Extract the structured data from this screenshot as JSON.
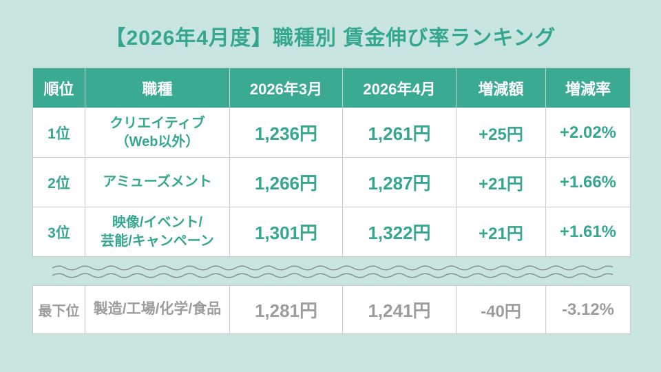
{
  "title": "【2026年4月度】職種別 賃金伸び率ランキング",
  "colors": {
    "background": "#c9e5df",
    "accent_teal": "#3aaa93",
    "teal_text": "#35a78f",
    "gray_text": "#9c9c9c",
    "header_text": "#ffffff",
    "wave_gray": "#878f8b"
  },
  "table": {
    "headers": [
      "順位",
      "職種",
      "2026年3月",
      "2026年4月",
      "増減額",
      "増減率"
    ],
    "rows": [
      {
        "rank": "1位",
        "job_line1": "クリエイティブ",
        "job_line2": "（Web以外）",
        "march": "1,236円",
        "april": "1,261円",
        "diff": "+25円",
        "rate": "+2.02%"
      },
      {
        "rank": "2位",
        "job_line1": "アミューズメント",
        "job_line2": "",
        "march": "1,266円",
        "april": "1,287円",
        "diff": "+21円",
        "rate": "+1.66%"
      },
      {
        "rank": "3位",
        "job_line1": "映像/イベント/",
        "job_line2": "芸能/キャンペーン",
        "march": "1,301円",
        "april": "1,322円",
        "diff": "+21円",
        "rate": "+1.61%"
      }
    ]
  },
  "bottom": {
    "rank": "最下位",
    "job": "製造/工場/化学/食品",
    "march": "1,281円",
    "april": "1,241円",
    "diff": "-40円",
    "rate": "-3.12%"
  },
  "chart_data": {
    "type": "table",
    "title": "【2026年4月度】職種別 賃金伸び率ランキング",
    "columns": [
      "順位",
      "職種",
      "2026年3月",
      "2026年4月",
      "増減額",
      "増減率"
    ],
    "rows": [
      [
        "1位",
        "クリエイティブ（Web以外）",
        "1,236円",
        "1,261円",
        "+25円",
        "+2.02%"
      ],
      [
        "2位",
        "アミューズメント",
        "1,266円",
        "1,287円",
        "+21円",
        "+1.66%"
      ],
      [
        "3位",
        "映像/イベント/芸能/キャンペーン",
        "1,301円",
        "1,322円",
        "+21円",
        "+1.61%"
      ],
      [
        "最下位",
        "製造/工場/化学/食品",
        "1,281円",
        "1,241円",
        "-40円",
        "-3.12%"
      ]
    ],
    "values_march": [
      1236,
      1266,
      1301,
      1281
    ],
    "values_april": [
      1261,
      1287,
      1322,
      1241
    ],
    "diff_yen": [
      25,
      21,
      21,
      -40
    ],
    "rate_percent": [
      2.02,
      1.66,
      1.61,
      -3.12
    ]
  }
}
